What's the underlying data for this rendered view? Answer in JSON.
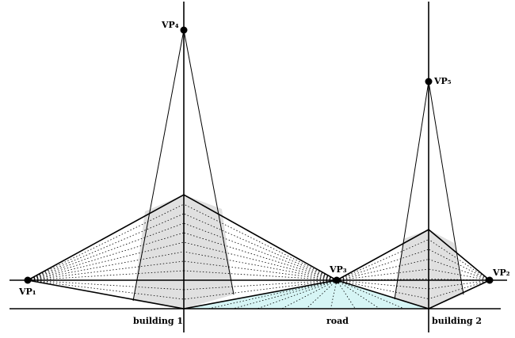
{
  "vanishing_points": [
    {
      "label": "VP₁"
    },
    {
      "label": "VP₂"
    },
    {
      "label": "VP₃"
    },
    {
      "label": "VP₄"
    },
    {
      "label": "VP₅"
    }
  ],
  "regions": [
    {
      "label": "building 1"
    },
    {
      "label": "road"
    },
    {
      "label": "building 2"
    }
  ]
}
